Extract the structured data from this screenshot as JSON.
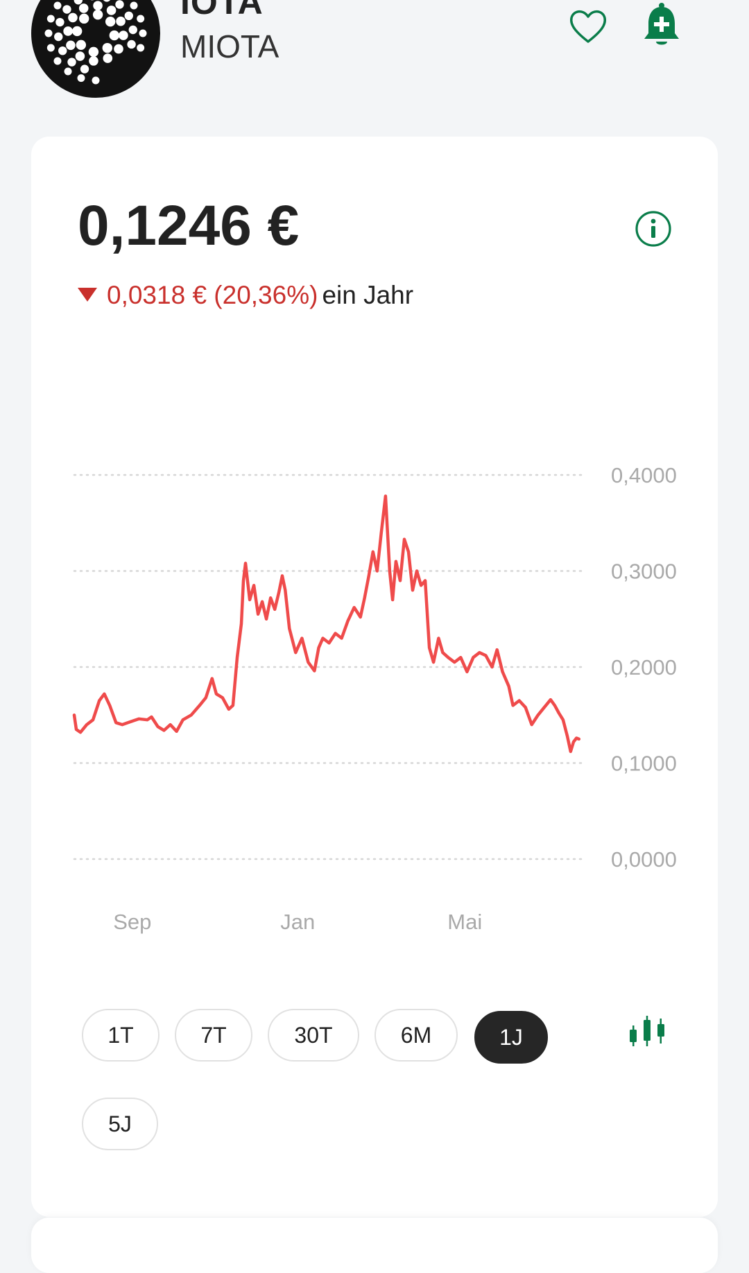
{
  "header": {
    "name": "IOTA",
    "symbol": "MIOTA",
    "logo_icon": "iota-logo-icon",
    "favorite_icon": "heart-outline-icon",
    "alert_icon": "bell-plus-icon"
  },
  "price_card": {
    "price": "0,1246 €",
    "change": "0,0318 € (20,36%)",
    "change_direction": "down",
    "period": "ein Jahr",
    "info_icon": "info-circle-icon"
  },
  "colors": {
    "accent_green": "#0a7d4a",
    "negative_red": "#c9302c",
    "line_red": "#ef4b4b",
    "active_button": "#262626"
  },
  "range_buttons": [
    {
      "label": "1T",
      "active": false
    },
    {
      "label": "7T",
      "active": false
    },
    {
      "label": "30T",
      "active": false
    },
    {
      "label": "6M",
      "active": false
    },
    {
      "label": "1J",
      "active": true
    },
    {
      "label": "5J",
      "active": false
    }
  ],
  "candle_toggle_icon": "candlestick-icon",
  "chart_data": {
    "type": "line",
    "title": "",
    "xlabel": "",
    "ylabel": "",
    "ylim": [
      0,
      0.4
    ],
    "y_ticks": [
      "0,4000",
      "0,3000",
      "0,2000",
      "0,1000",
      "0,0000"
    ],
    "y_tick_values": [
      0.4,
      0.3,
      0.2,
      0.1,
      0.0
    ],
    "x_ticks": [
      {
        "label": "Sep",
        "month_index": 1
      },
      {
        "label": "Jan",
        "month_index": 5
      },
      {
        "label": "Mai",
        "month_index": 9
      }
    ],
    "x_range_months": [
      0,
      12
    ],
    "grid": true,
    "legend": "none",
    "series": [
      {
        "color": "#ef4b4b",
        "points": [
          [
            0.0,
            0.15
          ],
          [
            0.05,
            0.135
          ],
          [
            0.15,
            0.132
          ],
          [
            0.3,
            0.14
          ],
          [
            0.45,
            0.145
          ],
          [
            0.6,
            0.165
          ],
          [
            0.72,
            0.172
          ],
          [
            0.85,
            0.16
          ],
          [
            1.0,
            0.142
          ],
          [
            1.15,
            0.14
          ],
          [
            1.35,
            0.143
          ],
          [
            1.55,
            0.146
          ],
          [
            1.75,
            0.145
          ],
          [
            1.85,
            0.148
          ],
          [
            2.0,
            0.138
          ],
          [
            2.15,
            0.134
          ],
          [
            2.3,
            0.14
          ],
          [
            2.45,
            0.133
          ],
          [
            2.6,
            0.145
          ],
          [
            2.8,
            0.15
          ],
          [
            3.0,
            0.16
          ],
          [
            3.15,
            0.168
          ],
          [
            3.3,
            0.188
          ],
          [
            3.4,
            0.172
          ],
          [
            3.55,
            0.168
          ],
          [
            3.7,
            0.156
          ],
          [
            3.8,
            0.16
          ],
          [
            3.9,
            0.21
          ],
          [
            4.0,
            0.245
          ],
          [
            4.05,
            0.29
          ],
          [
            4.1,
            0.308
          ],
          [
            4.2,
            0.27
          ],
          [
            4.3,
            0.285
          ],
          [
            4.4,
            0.255
          ],
          [
            4.5,
            0.268
          ],
          [
            4.6,
            0.25
          ],
          [
            4.7,
            0.272
          ],
          [
            4.8,
            0.26
          ],
          [
            4.9,
            0.278
          ],
          [
            4.98,
            0.295
          ],
          [
            5.05,
            0.28
          ],
          [
            5.15,
            0.24
          ],
          [
            5.3,
            0.215
          ],
          [
            5.45,
            0.23
          ],
          [
            5.6,
            0.205
          ],
          [
            5.75,
            0.196
          ],
          [
            5.85,
            0.22
          ],
          [
            5.95,
            0.23
          ],
          [
            6.1,
            0.225
          ],
          [
            6.25,
            0.235
          ],
          [
            6.4,
            0.23
          ],
          [
            6.55,
            0.248
          ],
          [
            6.7,
            0.262
          ],
          [
            6.85,
            0.252
          ],
          [
            6.95,
            0.272
          ],
          [
            7.05,
            0.295
          ],
          [
            7.15,
            0.32
          ],
          [
            7.25,
            0.3
          ],
          [
            7.35,
            0.34
          ],
          [
            7.45,
            0.378
          ],
          [
            7.55,
            0.3
          ],
          [
            7.62,
            0.27
          ],
          [
            7.7,
            0.31
          ],
          [
            7.8,
            0.29
          ],
          [
            7.9,
            0.333
          ],
          [
            8.0,
            0.32
          ],
          [
            8.1,
            0.28
          ],
          [
            8.2,
            0.3
          ],
          [
            8.3,
            0.285
          ],
          [
            8.4,
            0.29
          ],
          [
            8.5,
            0.22
          ],
          [
            8.6,
            0.205
          ],
          [
            8.72,
            0.23
          ],
          [
            8.82,
            0.215
          ],
          [
            8.95,
            0.21
          ],
          [
            9.1,
            0.205
          ],
          [
            9.25,
            0.21
          ],
          [
            9.4,
            0.195
          ],
          [
            9.55,
            0.21
          ],
          [
            9.7,
            0.215
          ],
          [
            9.85,
            0.212
          ],
          [
            10.0,
            0.2
          ],
          [
            10.12,
            0.218
          ],
          [
            10.25,
            0.195
          ],
          [
            10.4,
            0.18
          ],
          [
            10.5,
            0.16
          ],
          [
            10.65,
            0.165
          ],
          [
            10.8,
            0.158
          ],
          [
            10.95,
            0.14
          ],
          [
            11.1,
            0.15
          ],
          [
            11.25,
            0.158
          ],
          [
            11.4,
            0.166
          ],
          [
            11.5,
            0.16
          ],
          [
            11.6,
            0.152
          ],
          [
            11.7,
            0.145
          ],
          [
            11.8,
            0.128
          ],
          [
            11.88,
            0.112
          ],
          [
            11.95,
            0.122
          ],
          [
            12.02,
            0.126
          ],
          [
            12.08,
            0.125
          ]
        ]
      }
    ]
  }
}
